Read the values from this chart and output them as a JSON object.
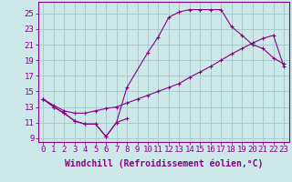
{
  "background_color": "#cce8e8",
  "grid_color": "#aacccc",
  "line_color": "#880088",
  "xlabel": "Windchill (Refroidissement éolien,°C)",
  "xlim_min": -0.5,
  "xlim_max": 23.5,
  "ylim_min": 8.5,
  "ylim_max": 26.5,
  "yticks": [
    9,
    11,
    13,
    15,
    17,
    19,
    21,
    23,
    25
  ],
  "xticks": [
    0,
    1,
    2,
    3,
    4,
    5,
    6,
    7,
    8,
    9,
    10,
    11,
    12,
    13,
    14,
    15,
    16,
    17,
    18,
    19,
    20,
    21,
    22,
    23
  ],
  "line1_x": [
    0,
    1,
    2,
    3,
    4,
    5,
    6,
    7,
    8
  ],
  "line1_y": [
    14.0,
    13.0,
    12.2,
    11.2,
    10.8,
    10.8,
    9.2,
    11.0,
    11.5
  ],
  "line2_x": [
    0,
    1,
    2,
    3,
    4,
    5,
    6,
    7,
    8,
    10,
    11,
    12,
    13,
    14,
    15,
    16,
    17,
    18,
    19,
    20,
    21,
    22,
    23
  ],
  "line2_y": [
    14.0,
    13.0,
    12.2,
    11.2,
    10.8,
    10.8,
    9.2,
    11.0,
    15.5,
    20.0,
    22.0,
    24.5,
    25.2,
    25.5,
    25.5,
    25.5,
    25.5,
    23.3,
    22.2,
    21.0,
    20.5,
    19.3,
    18.5
  ],
  "line3_x": [
    0,
    1,
    2,
    3,
    4,
    5,
    6,
    7,
    8,
    9,
    10,
    11,
    12,
    13,
    14,
    15,
    16,
    17,
    18,
    19,
    20,
    21,
    22,
    23
  ],
  "line3_y": [
    14.0,
    13.2,
    12.5,
    12.2,
    12.2,
    12.5,
    12.8,
    13.0,
    13.5,
    14.0,
    14.5,
    15.0,
    15.5,
    16.0,
    16.8,
    17.5,
    18.2,
    19.0,
    19.8,
    20.5,
    21.2,
    21.8,
    22.2,
    18.2
  ],
  "font_family": "monospace",
  "tick_fontsize": 6.5,
  "label_fontsize": 7.0
}
